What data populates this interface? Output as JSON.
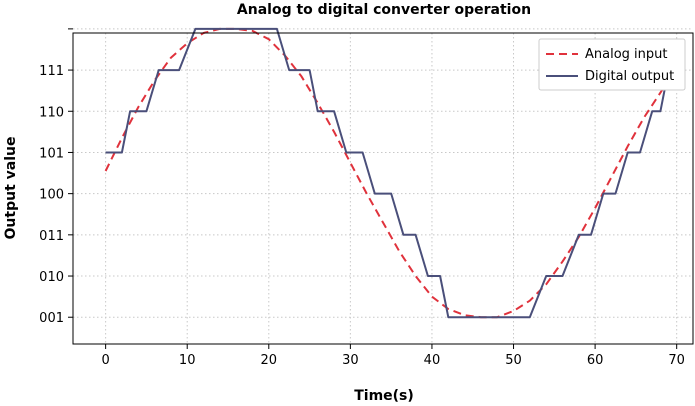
{
  "chart_data": {
    "type": "line",
    "title": "Analog to digital converter operation",
    "xlabel": "Time(s)",
    "ylabel": "Output value",
    "xlim": [
      -4,
      72
    ],
    "ylim": [
      0.35,
      7.9
    ],
    "x_ticks": [
      0,
      10,
      20,
      30,
      40,
      50,
      60,
      70
    ],
    "y_ticks": [
      {
        "value": 1,
        "label": "001"
      },
      {
        "value": 2,
        "label": "010"
      },
      {
        "value": 3,
        "label": "011"
      },
      {
        "value": 4,
        "label": "100"
      },
      {
        "value": 5,
        "label": "101"
      },
      {
        "value": 6,
        "label": "110"
      },
      {
        "value": 7,
        "label": "111"
      },
      {
        "value": 8,
        "label": ""
      }
    ],
    "grid": true,
    "legend_position": "top-right",
    "series": [
      {
        "name": "Analog input",
        "style": "dashed",
        "color": "#e0323c",
        "x": [
          0,
          2,
          4,
          6,
          8,
          10,
          12,
          14,
          16,
          18,
          20,
          22,
          24,
          26,
          28,
          30,
          32,
          34,
          36,
          38,
          40,
          42,
          44,
          46,
          47,
          48,
          50,
          52,
          54,
          56,
          58,
          60,
          62,
          64,
          66,
          68,
          69
        ],
        "y": [
          4.55,
          5.35,
          6.1,
          6.75,
          7.3,
          7.65,
          7.9,
          8.0,
          8.0,
          7.95,
          7.75,
          7.35,
          6.85,
          6.2,
          5.5,
          4.75,
          4.0,
          3.3,
          2.6,
          2.0,
          1.5,
          1.2,
          1.05,
          1.0,
          1.0,
          1.0,
          1.15,
          1.4,
          1.8,
          2.35,
          2.95,
          3.65,
          4.4,
          5.15,
          5.85,
          6.45,
          6.75
        ]
      },
      {
        "name": "Digital output",
        "style": "solid",
        "color": "#4a4f7a",
        "x": [
          0,
          2,
          3,
          5,
          6.5,
          9,
          11,
          21,
          22.5,
          25,
          26,
          28,
          29.5,
          31.5,
          33,
          35,
          36.5,
          38,
          39.5,
          41,
          42,
          44,
          52,
          54,
          56,
          58,
          59.5,
          61,
          62.5,
          64,
          65.5,
          67,
          68,
          69
        ],
        "y": [
          5,
          5,
          6,
          6,
          7,
          7,
          8,
          8,
          7,
          7,
          6,
          6,
          5,
          5,
          4,
          4,
          3,
          3,
          2,
          2,
          1,
          1,
          1,
          2,
          2,
          3,
          3,
          4,
          4,
          5,
          5,
          6,
          6,
          7
        ]
      }
    ]
  }
}
